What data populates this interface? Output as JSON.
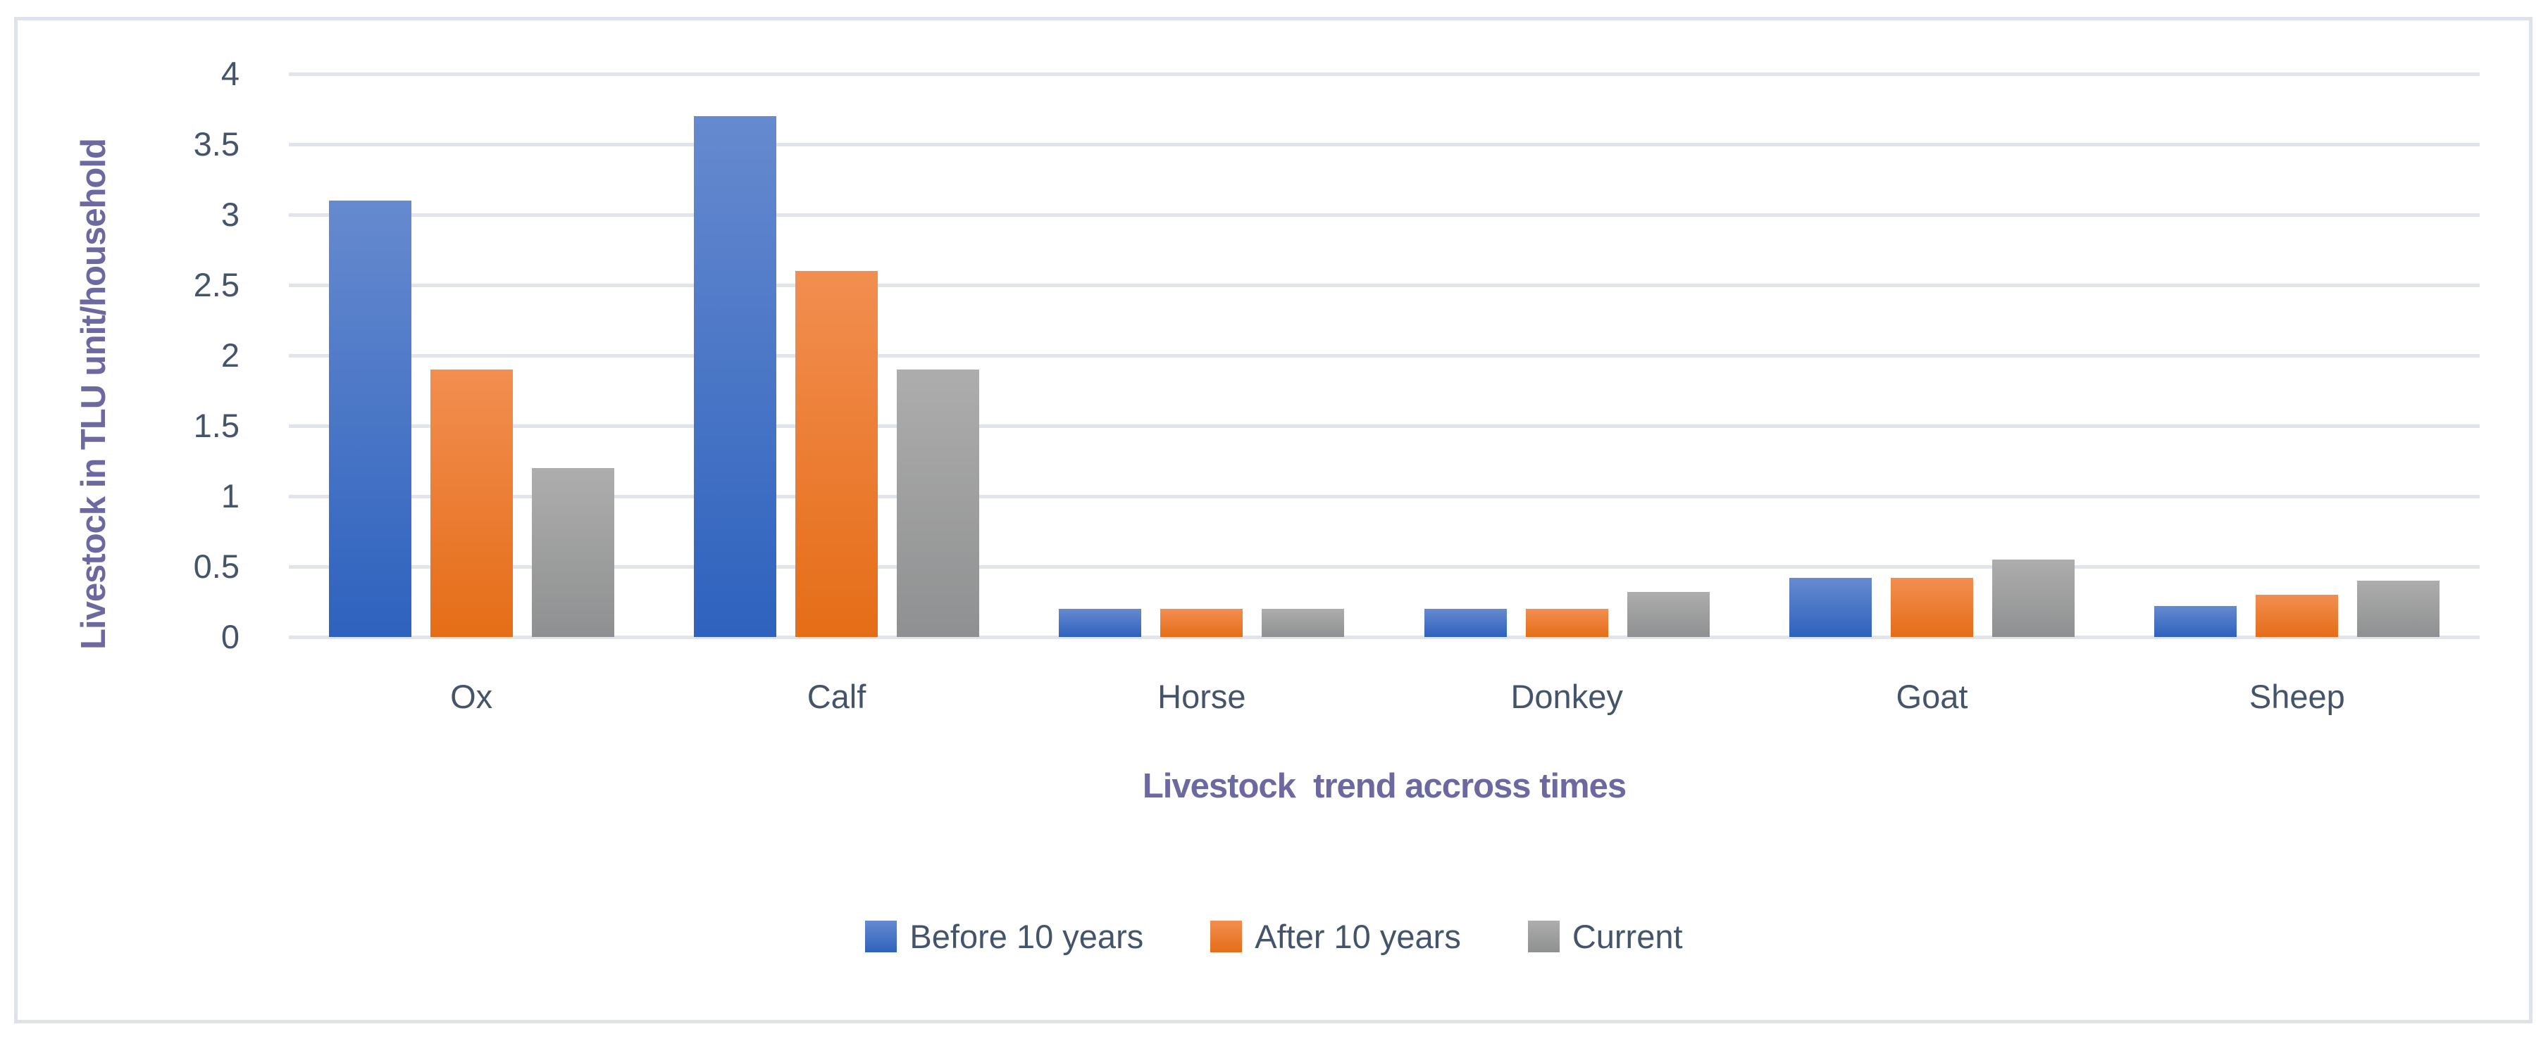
{
  "chart_data": {
    "type": "bar",
    "title": "",
    "categories": [
      "Ox",
      "Calf",
      "Horse",
      "Donkey",
      "Goat",
      "Sheep"
    ],
    "series": [
      {
        "name": "Before 10 years",
        "color_top": "#668ACF",
        "color_bottom": "#2E62BE",
        "values": [
          3.1,
          3.7,
          0.2,
          0.2,
          0.42,
          0.22
        ]
      },
      {
        "name": "After 10 years",
        "color_top": "#F28E51",
        "color_bottom": "#E56D17",
        "values": [
          1.9,
          2.6,
          0.2,
          0.2,
          0.42,
          0.3
        ]
      },
      {
        "name": "Current",
        "color_top": "#ADADAD",
        "color_bottom": "#8F9091",
        "values": [
          1.2,
          1.9,
          0.2,
          0.32,
          0.55,
          0.4
        ]
      }
    ],
    "xlabel": "Livestock  trend accross times",
    "ylabel": "Livestock in TLU unit/household",
    "ylim": [
      0,
      4
    ],
    "ytick_step": 0.5,
    "yticks": [
      "0",
      "0.5",
      "1",
      "1.5",
      "2",
      "2.5",
      "3",
      "3.5",
      "4"
    ],
    "grid": true,
    "legend_position": "bottom"
  },
  "colors": {
    "axis_title": "#6C68A0",
    "tick_label": "#44546A",
    "gridline": "#E0E4ED",
    "frame_border": "#DFE2EA",
    "background": "#FFFFFF"
  }
}
